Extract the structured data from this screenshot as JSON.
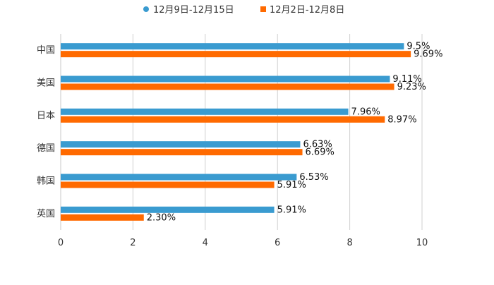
{
  "chart_data": {
    "type": "bar",
    "orientation": "horizontal",
    "categories": [
      "中国",
      "美国",
      "日本",
      "德国",
      "韩国",
      "英国"
    ],
    "series": [
      {
        "name": "12月9日-12月15日",
        "color": "#3a9bd0",
        "values": [
          9.5,
          9.11,
          7.96,
          6.63,
          6.53,
          5.91
        ],
        "labels": [
          "9.5%",
          "9.11%",
          "7.96%",
          "6.63%",
          "6.53%",
          "5.91%"
        ]
      },
      {
        "name": "12月2日-12月8日",
        "color": "#ff6a00",
        "values": [
          9.69,
          9.23,
          8.97,
          6.69,
          5.91,
          2.3
        ],
        "labels": [
          "9.69%",
          "9.23%",
          "8.97%",
          "6.69%",
          "5.91%",
          "2.30%"
        ]
      }
    ],
    "xlim": [
      0,
      10
    ],
    "xticks": [
      0,
      2,
      4,
      6,
      8,
      10
    ],
    "xtick_labels": [
      "0",
      "2",
      "4",
      "6",
      "8",
      "10"
    ],
    "grid": true,
    "legend_position": "top-center",
    "title": "",
    "xlabel": "",
    "ylabel": ""
  }
}
